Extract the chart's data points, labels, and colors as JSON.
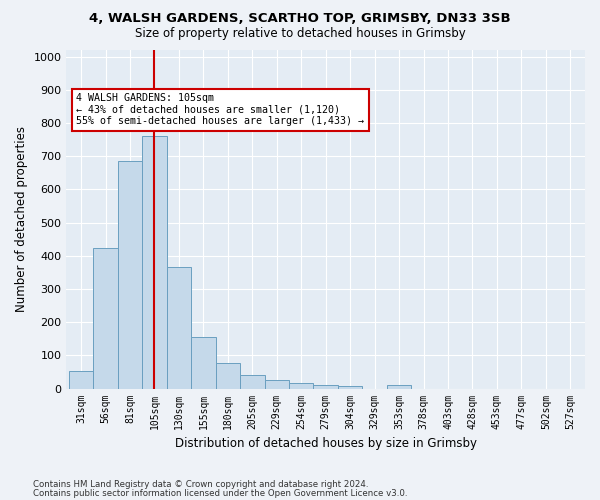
{
  "title1": "4, WALSH GARDENS, SCARTHO TOP, GRIMSBY, DN33 3SB",
  "title2": "Size of property relative to detached houses in Grimsby",
  "xlabel": "Distribution of detached houses by size in Grimsby",
  "ylabel": "Number of detached properties",
  "bin_labels": [
    "31sqm",
    "56sqm",
    "81sqm",
    "105sqm",
    "130sqm",
    "155sqm",
    "180sqm",
    "205sqm",
    "229sqm",
    "254sqm",
    "279sqm",
    "304sqm",
    "329sqm",
    "353sqm",
    "378sqm",
    "403sqm",
    "428sqm",
    "453sqm",
    "477sqm",
    "502sqm",
    "527sqm"
  ],
  "bar_values": [
    52,
    422,
    685,
    760,
    365,
    155,
    77,
    40,
    27,
    18,
    10,
    9,
    0,
    10,
    0,
    0,
    0,
    0,
    0,
    0,
    0
  ],
  "bar_color": "#c5d9ea",
  "bar_edge_color": "#6a9fc0",
  "highlight_index": 3,
  "highlight_color": "#cc0000",
  "annotation_text": "4 WALSH GARDENS: 105sqm\n← 43% of detached houses are smaller (1,120)\n55% of semi-detached houses are larger (1,433) →",
  "annotation_box_color": "#cc0000",
  "ylim": [
    0,
    1020
  ],
  "yticks": [
    0,
    100,
    200,
    300,
    400,
    500,
    600,
    700,
    800,
    900,
    1000
  ],
  "footer_line1": "Contains HM Land Registry data © Crown copyright and database right 2024.",
  "footer_line2": "Contains public sector information licensed under the Open Government Licence v3.0.",
  "bg_color": "#eef2f7",
  "plot_bg_color": "#e4ecf4"
}
